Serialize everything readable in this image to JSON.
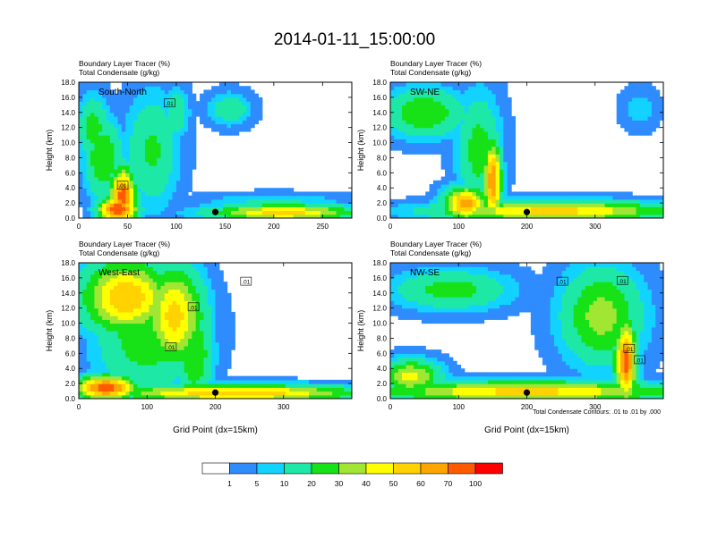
{
  "title": "2014-01-11_15:00:00",
  "chart_data": [
    {
      "type": "heatmap",
      "panel_label": "South-North",
      "title_lines": [
        "Boundary Layer Tracer   (%)",
        "Total Condensate   (g/kg)"
      ],
      "ylabel": "Height (km)",
      "xlabel": "",
      "xlim": [
        0,
        280
      ],
      "ylim": [
        0,
        18
      ],
      "x_ticks": [
        "0",
        "50",
        "100",
        "150",
        "200",
        "250"
      ],
      "x_tick_values": [
        0,
        50,
        100,
        150,
        200,
        250
      ],
      "y_ticks": [
        "0.0",
        "2.0",
        "4.0",
        "6.0",
        "8.0",
        "10.0",
        "12.0",
        "14.0",
        "16.0",
        "18.0"
      ],
      "contour_labels": [
        {
          "text": ".01",
          "x": 93,
          "y": 15.2
        },
        {
          "text": ".01",
          "x": 45,
          "y": 4.3
        }
      ],
      "marker": {
        "x": 140,
        "y": 0.8
      },
      "features": [
        {
          "x": 45,
          "y": 3,
          "rx": 12,
          "ry": 3.5,
          "v": 75
        },
        {
          "x": 40,
          "y": 1.2,
          "rx": 18,
          "ry": 1.5,
          "v": 85
        },
        {
          "x": 25,
          "y": 8,
          "rx": 18,
          "ry": 5,
          "v": 30
        },
        {
          "x": 75,
          "y": 9,
          "rx": 25,
          "ry": 7,
          "v": 22
        },
        {
          "x": 15,
          "y": 12,
          "rx": 15,
          "ry": 4,
          "v": 25
        },
        {
          "x": 100,
          "y": 14,
          "rx": 12,
          "ry": 3,
          "v": 20
        },
        {
          "x": 210,
          "y": 0.8,
          "rx": 70,
          "ry": 1,
          "v": 55
        },
        {
          "x": 200,
          "y": 2.2,
          "rx": 70,
          "ry": 1,
          "v": 12
        },
        {
          "x": 155,
          "y": 14.5,
          "rx": 20,
          "ry": 2,
          "v": 18
        }
      ]
    },
    {
      "type": "heatmap",
      "panel_label": "SW-NE",
      "title_lines": [
        "Boundary Layer Tracer   (%)",
        "Total Condensate   (g/kg)"
      ],
      "ylabel": "Height (km)",
      "xlabel": "",
      "xlim": [
        0,
        400
      ],
      "ylim": [
        0,
        18
      ],
      "x_ticks": [
        "0",
        "100",
        "200",
        "300"
      ],
      "x_tick_values": [
        0,
        100,
        200,
        300
      ],
      "y_ticks": [
        "0.0",
        "2.0",
        "4.0",
        "6.0",
        "8.0",
        "10.0",
        "12.0",
        "14.0",
        "16.0",
        "18.0"
      ],
      "contour_labels": [],
      "marker": {
        "x": 200,
        "y": 0.8
      },
      "features": [
        {
          "x": 150,
          "y": 5,
          "rx": 12,
          "ry": 5,
          "v": 70
        },
        {
          "x": 110,
          "y": 2,
          "rx": 30,
          "ry": 2,
          "v": 65
        },
        {
          "x": 50,
          "y": 14,
          "rx": 55,
          "ry": 3,
          "v": 30
        },
        {
          "x": 130,
          "y": 9,
          "rx": 30,
          "ry": 7,
          "v": 25
        },
        {
          "x": 240,
          "y": 1,
          "rx": 160,
          "ry": 1.2,
          "v": 55
        },
        {
          "x": 365,
          "y": 14.5,
          "rx": 25,
          "ry": 2.5,
          "v": 8
        }
      ]
    },
    {
      "type": "heatmap",
      "panel_label": "West-East",
      "title_lines": [
        "Boundary Layer Tracer   (%)",
        "Total Condensate   (g/kg)"
      ],
      "ylabel": "Height (km)",
      "xlabel": "Grid Point (dx=15km)",
      "xlim": [
        0,
        400
      ],
      "ylim": [
        0,
        18
      ],
      "x_ticks": [
        "0",
        "100",
        "200",
        "300"
      ],
      "x_tick_values": [
        0,
        100,
        200,
        300
      ],
      "y_ticks": [
        "0.0",
        "2.0",
        "4.0",
        "6.0",
        "8.0",
        "10.0",
        "12.0",
        "14.0",
        "16.0",
        "18.0"
      ],
      "contour_labels": [
        {
          "text": ".01",
          "x": 245,
          "y": 15.5
        },
        {
          "text": ".01",
          "x": 168,
          "y": 12.1
        },
        {
          "text": ".01",
          "x": 135,
          "y": 6.8
        }
      ],
      "marker": {
        "x": 200,
        "y": 0.8
      },
      "features": [
        {
          "x": 70,
          "y": 13.5,
          "rx": 60,
          "ry": 4.5,
          "v": 60
        },
        {
          "x": 140,
          "y": 11,
          "rx": 40,
          "ry": 6,
          "v": 55
        },
        {
          "x": 100,
          "y": 9,
          "rx": 70,
          "ry": 8,
          "v": 28
        },
        {
          "x": 170,
          "y": 6,
          "rx": 25,
          "ry": 6,
          "v": 30
        },
        {
          "x": 40,
          "y": 1.5,
          "rx": 40,
          "ry": 1.5,
          "v": 80
        },
        {
          "x": 230,
          "y": 0.8,
          "rx": 170,
          "ry": 1,
          "v": 60
        }
      ]
    },
    {
      "type": "heatmap",
      "panel_label": "NW-SE",
      "title_lines": [
        "Boundary Layer Tracer   (%)",
        "Total Condensate   (g/kg)"
      ],
      "ylabel": "Height (km)",
      "xlabel": "Grid Point (dx=15km)",
      "xlim": [
        0,
        400
      ],
      "ylim": [
        0,
        18
      ],
      "x_ticks": [
        "0",
        "100",
        "200",
        "300"
      ],
      "x_tick_values": [
        0,
        100,
        200,
        300
      ],
      "y_ticks": [
        "0.0",
        "2.0",
        "4.0",
        "6.0",
        "8.0",
        "10.0",
        "12.0",
        "14.0",
        "16.0",
        "18.0"
      ],
      "contour_labels": [
        {
          "text": ".01",
          "x": 252,
          "y": 15.5
        },
        {
          "text": ".01",
          "x": 340,
          "y": 15.6
        },
        {
          "text": ".01",
          "x": 350,
          "y": 6.6
        },
        {
          "text": ".01",
          "x": 365,
          "y": 5.1
        }
      ],
      "marker": {
        "x": 200,
        "y": 0.8
      },
      "features": [
        {
          "x": 345,
          "y": 5,
          "rx": 15,
          "ry": 5,
          "v": 75
        },
        {
          "x": 310,
          "y": 11,
          "rx": 55,
          "ry": 6,
          "v": 35
        },
        {
          "x": 90,
          "y": 14.5,
          "rx": 80,
          "ry": 2.5,
          "v": 25
        },
        {
          "x": 30,
          "y": 3,
          "rx": 40,
          "ry": 2,
          "v": 45
        },
        {
          "x": 200,
          "y": 1,
          "rx": 200,
          "ry": 1.3,
          "v": 55
        }
      ]
    }
  ],
  "footnote": "Total Condensate Contours: .01 to .01 by .000",
  "colorbar": {
    "colors": [
      "#ffffff",
      "#2f8cff",
      "#12d3ff",
      "#1ee8a5",
      "#17e117",
      "#a0e632",
      "#ffff00",
      "#ffd200",
      "#ffa500",
      "#ff5a00",
      "#ff0000"
    ],
    "labels": [
      "1",
      "5",
      "10",
      "20",
      "30",
      "40",
      "50",
      "60",
      "70",
      "100"
    ],
    "levels": [
      1,
      5,
      10,
      20,
      30,
      40,
      50,
      60,
      70,
      100
    ]
  }
}
